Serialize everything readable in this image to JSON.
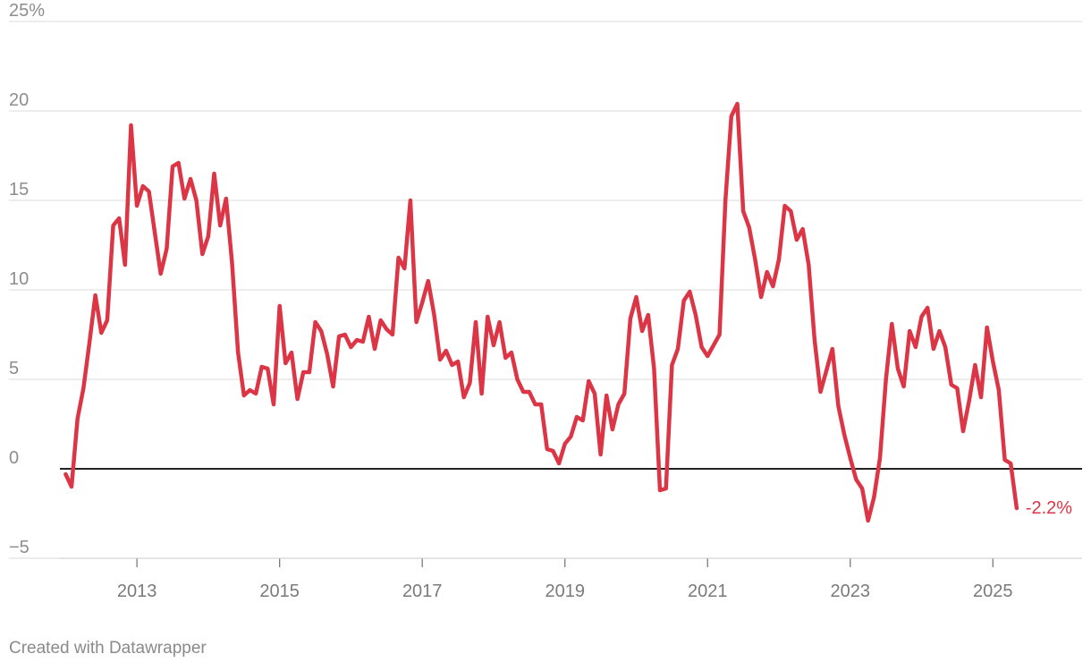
{
  "footer": {
    "credit": "Created with Datawrapper"
  },
  "colors": {
    "line": "#dc3545",
    "grid": "#e2e2e2",
    "zero": "#222222",
    "axis_text": "#8d8d8d"
  },
  "chart_data": {
    "type": "line",
    "title": "",
    "xlabel": "",
    "ylabel": "",
    "xlim": [
      2011.92,
      2026.25
    ],
    "ylim": [
      -5,
      25
    ],
    "grid": true,
    "y_ticks": [
      {
        "value": -5,
        "label": "−5"
      },
      {
        "value": 0,
        "label": "0"
      },
      {
        "value": 5,
        "label": "5"
      },
      {
        "value": 10,
        "label": "10"
      },
      {
        "value": 15,
        "label": "15"
      },
      {
        "value": 20,
        "label": "20"
      },
      {
        "value": 25,
        "label": "25%"
      }
    ],
    "x_ticks": [
      {
        "value": 2013,
        "label": "2013"
      },
      {
        "value": 2015,
        "label": "2015"
      },
      {
        "value": 2017,
        "label": "2017"
      },
      {
        "value": 2019,
        "label": "2019"
      },
      {
        "value": 2021,
        "label": "2021"
      },
      {
        "value": 2023,
        "label": "2023"
      },
      {
        "value": 2025,
        "label": "2025"
      }
    ],
    "end_label": "-2.2%",
    "series": [
      {
        "x": [
          2012.0,
          2012.083,
          2012.167,
          2012.25,
          2012.333,
          2012.417,
          2012.5,
          2012.583,
          2012.667,
          2012.75,
          2012.833,
          2012.917,
          2013.0,
          2013.083,
          2013.167,
          2013.25,
          2013.333,
          2013.417,
          2013.5,
          2013.583,
          2013.667,
          2013.75,
          2013.833,
          2013.917,
          2014.0,
          2014.083,
          2014.167,
          2014.25,
          2014.333,
          2014.417,
          2014.5,
          2014.583,
          2014.667,
          2014.75,
          2014.833,
          2014.917,
          2015.0,
          2015.083,
          2015.167,
          2015.25,
          2015.333,
          2015.417,
          2015.5,
          2015.583,
          2015.667,
          2015.75,
          2015.833,
          2015.917,
          2016.0,
          2016.083,
          2016.167,
          2016.25,
          2016.333,
          2016.417,
          2016.5,
          2016.583,
          2016.667,
          2016.75,
          2016.833,
          2016.917,
          2017.0,
          2017.083,
          2017.167,
          2017.25,
          2017.333,
          2017.417,
          2017.5,
          2017.583,
          2017.667,
          2017.75,
          2017.833,
          2017.917,
          2018.0,
          2018.083,
          2018.167,
          2018.25,
          2018.333,
          2018.417,
          2018.5,
          2018.583,
          2018.667,
          2018.75,
          2018.833,
          2018.917,
          2019.0,
          2019.083,
          2019.167,
          2019.25,
          2019.333,
          2019.417,
          2019.5,
          2019.583,
          2019.667,
          2019.75,
          2019.833,
          2019.917,
          2020.0,
          2020.083,
          2020.167,
          2020.25,
          2020.333,
          2020.417,
          2020.5,
          2020.583,
          2020.667,
          2020.75,
          2020.833,
          2020.917,
          2021.0,
          2021.083,
          2021.167,
          2021.25,
          2021.333,
          2021.417,
          2021.5,
          2021.583,
          2021.667,
          2021.75,
          2021.833,
          2021.917,
          2022.0,
          2022.083,
          2022.167,
          2022.25,
          2022.333,
          2022.417,
          2022.5,
          2022.583,
          2022.667,
          2022.75,
          2022.833,
          2022.917,
          2023.0,
          2023.083,
          2023.167,
          2023.25,
          2023.333,
          2023.417,
          2023.5,
          2023.583,
          2023.667,
          2023.75,
          2023.833,
          2023.917,
          2024.0,
          2024.083,
          2024.167,
          2024.25,
          2024.333,
          2024.417,
          2024.5,
          2024.583,
          2024.667,
          2024.75,
          2024.833,
          2024.917,
          2025.0,
          2025.083,
          2025.167,
          2025.25,
          2025.333
        ],
        "y": [
          -0.3,
          -1.0,
          2.8,
          4.5,
          7.0,
          9.7,
          7.6,
          8.3,
          13.6,
          14.0,
          11.4,
          19.2,
          14.7,
          15.8,
          15.5,
          13.2,
          10.9,
          12.3,
          16.9,
          17.1,
          15.1,
          16.2,
          15.0,
          12.0,
          13.0,
          16.5,
          13.6,
          15.1,
          11.5,
          6.5,
          4.1,
          4.4,
          4.2,
          5.7,
          5.6,
          3.6,
          9.1,
          5.9,
          6.5,
          3.9,
          5.4,
          5.4,
          8.2,
          7.7,
          6.4,
          4.6,
          7.4,
          7.5,
          6.8,
          7.2,
          7.1,
          8.5,
          6.7,
          8.3,
          7.8,
          7.5,
          11.8,
          11.2,
          15.0,
          8.2,
          9.3,
          10.5,
          8.6,
          6.1,
          6.6,
          5.8,
          6.0,
          4.0,
          4.8,
          8.2,
          4.2,
          8.5,
          6.9,
          8.2,
          6.2,
          6.5,
          5.0,
          4.3,
          4.3,
          3.6,
          3.6,
          1.1,
          1.0,
          0.3,
          1.4,
          1.8,
          2.9,
          2.7,
          4.9,
          4.2,
          0.8,
          4.1,
          2.2,
          3.6,
          4.2,
          8.4,
          9.6,
          7.7,
          8.6,
          5.6,
          -1.2,
          -1.1,
          5.8,
          6.7,
          9.4,
          9.9,
          8.6,
          6.8,
          6.3,
          6.9,
          7.5,
          15.0,
          19.7,
          20.4,
          14.4,
          13.5,
          11.7,
          9.6,
          11.0,
          10.2,
          11.7,
          14.7,
          14.4,
          12.8,
          13.4,
          11.4,
          7.2,
          4.3,
          5.5,
          6.7,
          3.5,
          1.9,
          0.6,
          -0.6,
          -1.1,
          -2.9,
          -1.6,
          0.6,
          5.0,
          8.1,
          5.6,
          4.6,
          7.7,
          6.8,
          8.5,
          9.0,
          6.7,
          7.7,
          6.8,
          4.7,
          4.5,
          2.1,
          3.8,
          5.8,
          4.0,
          7.9,
          6.0,
          4.4,
          0.5,
          0.3,
          -2.2
        ]
      }
    ]
  }
}
